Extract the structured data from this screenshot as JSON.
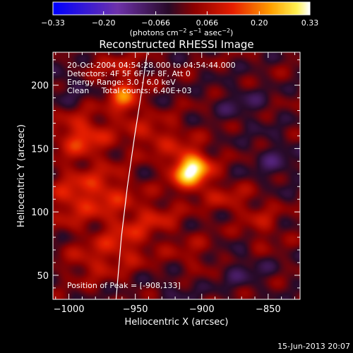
{
  "chart_data": {
    "type": "heatmap",
    "title": "Reconstructed RHESSI Image",
    "xlabel": "Heliocentric X (arcsec)",
    "ylabel": "Heliocentric Y (arcsec)",
    "xlim": [
      -1012,
      -826
    ],
    "ylim": [
      31,
      226
    ],
    "x_ticks": [
      -1000,
      -950,
      -900,
      -850
    ],
    "x_tick_labels": [
      "−1000",
      "−950",
      "−900",
      "−850"
    ],
    "y_ticks": [
      50,
      100,
      150,
      200
    ],
    "y_tick_labels": [
      "50",
      "100",
      "150",
      "200"
    ],
    "colorbar": {
      "range": [
        -0.33,
        0.33
      ],
      "ticks": [
        -0.33,
        -0.2,
        -0.066,
        0.066,
        0.2,
        0.33
      ],
      "tick_labels": [
        "−0.33",
        "−0.20",
        "−0.066",
        "0.066",
        "0.20",
        "0.33"
      ],
      "units_text": "(photons cm",
      "units_exp1": "−2",
      "units_mid": " s",
      "units_exp2": "−1",
      "units_mid2": " asec",
      "units_exp3": "−2",
      "units_end": ")"
    },
    "peak": {
      "x": -908,
      "y": 133
    },
    "limb_curve": [
      [
        -964.5,
        31
      ],
      [
        -960.5,
        80
      ],
      [
        -956,
        120
      ],
      [
        -950.5,
        160
      ],
      [
        -944.5,
        200
      ],
      [
        -941,
        226
      ]
    ],
    "sources": [
      {
        "x": -908,
        "y": 133,
        "amp": 0.33,
        "sx": 10,
        "sy": 10
      },
      {
        "x": -958,
        "y": 190,
        "amp": 0.18,
        "sx": 8,
        "sy": 10
      },
      {
        "x": -990,
        "y": 160,
        "amp": 0.14,
        "sx": 14,
        "sy": 12
      },
      {
        "x": -975,
        "y": 115,
        "amp": 0.12,
        "sx": 16,
        "sy": 14
      },
      {
        "x": -960,
        "y": 75,
        "amp": 0.1,
        "sx": 14,
        "sy": 14
      },
      {
        "x": -935,
        "y": 160,
        "amp": 0.09,
        "sx": 16,
        "sy": 10
      },
      {
        "x": -1000,
        "y": 110,
        "amp": 0.08,
        "sx": 10,
        "sy": 16
      },
      {
        "x": -985,
        "y": 60,
        "amp": 0.07,
        "sx": 12,
        "sy": 10
      },
      {
        "x": -880,
        "y": 110,
        "amp": 0.07,
        "sx": 12,
        "sy": 8
      },
      {
        "x": -935,
        "y": 95,
        "amp": 0.08,
        "sx": 14,
        "sy": 10
      },
      {
        "x": -855,
        "y": 90,
        "amp": 0.06,
        "sx": 10,
        "sy": 14
      },
      {
        "x": -905,
        "y": 65,
        "amp": 0.05,
        "sx": 14,
        "sy": 10
      },
      {
        "x": -965,
        "y": 215,
        "amp": 0.06,
        "sx": 16,
        "sy": 8
      },
      {
        "x": -870,
        "y": 185,
        "amp": -0.05,
        "sx": 14,
        "sy": 12
      },
      {
        "x": -845,
        "y": 140,
        "amp": -0.06,
        "sx": 12,
        "sy": 14
      },
      {
        "x": -870,
        "y": 55,
        "amp": -0.05,
        "sx": 16,
        "sy": 12
      },
      {
        "x": -1000,
        "y": 200,
        "amp": -0.05,
        "sx": 10,
        "sy": 10
      },
      {
        "x": -920,
        "y": 40,
        "amp": -0.04,
        "sx": 12,
        "sy": 8
      }
    ],
    "ripple": 0.035
  },
  "annotations": {
    "line1": "20-Oct-2004 04:54:28.000 to 04:54:44.000",
    "line2": "Detectors: 4F 5F 6F 7F 8F, Att 0",
    "line3": "Energy Range: 3.0 - 6.0 keV",
    "line4": "Clean     Total counts: 6.40E+03",
    "peak_text": "Position of Peak = [-908,133]"
  },
  "footer_date": "15-Jun-2013 20:07"
}
